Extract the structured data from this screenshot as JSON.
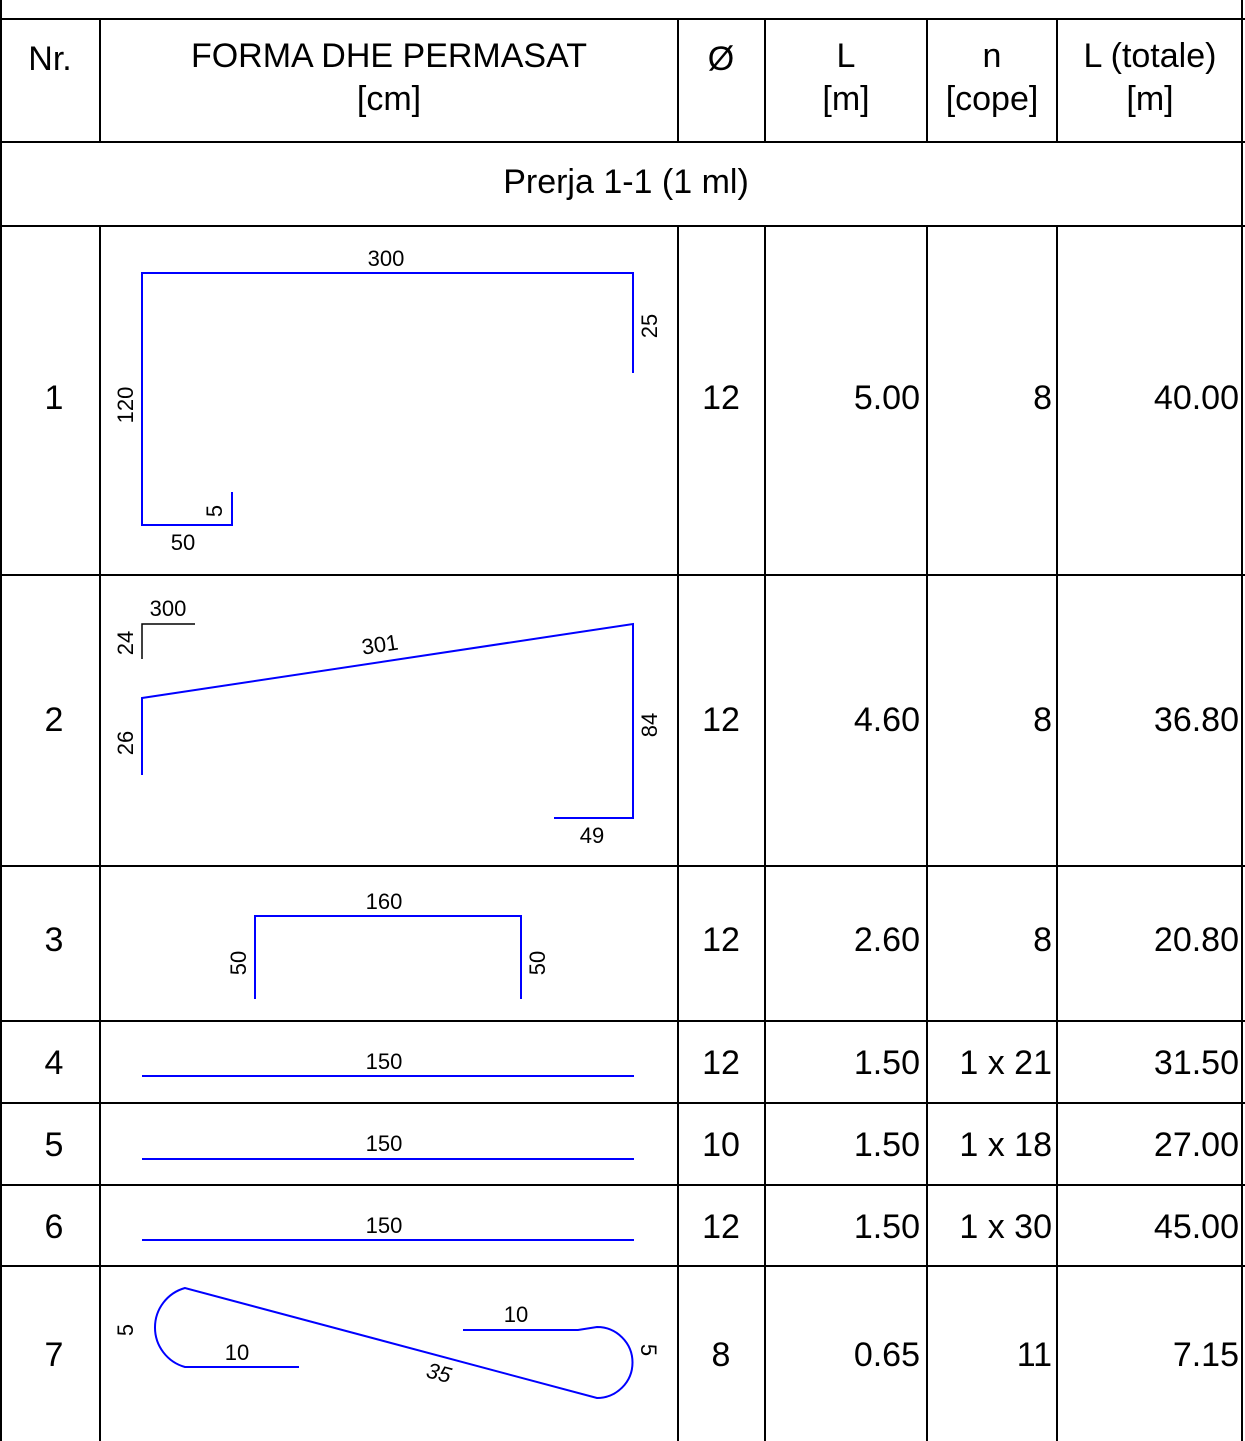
{
  "headers": {
    "nr": "Nr.",
    "forma_l1": "FORMA DHE PERMASAT",
    "forma_l2": "[cm]",
    "diameter": "Ø",
    "length_l1": "L",
    "length_l2": "[m]",
    "count_l1": "n",
    "count_l2": "[cope]",
    "total_l1": "L (totale)",
    "total_l2": "[m]"
  },
  "section_title": "Prerja 1-1 (1 ml)",
  "rows": [
    {
      "nr": "1",
      "diameter": "12",
      "length": "5.00",
      "count": "8",
      "total": "40.00",
      "dims": [
        "300",
        "25",
        "120",
        "5",
        "50"
      ]
    },
    {
      "nr": "2",
      "diameter": "12",
      "length": "4.60",
      "count": "8",
      "total": "36.80",
      "dims": [
        "300",
        "24",
        "301",
        "26",
        "84",
        "49"
      ]
    },
    {
      "nr": "3",
      "diameter": "12",
      "length": "2.60",
      "count": "8",
      "total": "20.80",
      "dims": [
        "160",
        "50",
        "50"
      ]
    },
    {
      "nr": "4",
      "diameter": "12",
      "length": "1.50",
      "count": "1 x 21",
      "total": "31.50",
      "dims": [
        "150"
      ]
    },
    {
      "nr": "5",
      "diameter": "10",
      "length": "1.50",
      "count": "1 x 18",
      "total": "27.00",
      "dims": [
        "150"
      ]
    },
    {
      "nr": "6",
      "diameter": "12",
      "length": "1.50",
      "count": "1 x 30",
      "total": "45.00",
      "dims": [
        "150"
      ]
    },
    {
      "nr": "7",
      "diameter": "8",
      "length": "0.65",
      "count": "11",
      "total": "7.15",
      "dims": [
        "5",
        "10",
        "35",
        "10",
        "5"
      ]
    }
  ],
  "colors": {
    "bar_line": "#0000ff",
    "grid_line": "#000000",
    "background": "#ffffff"
  }
}
